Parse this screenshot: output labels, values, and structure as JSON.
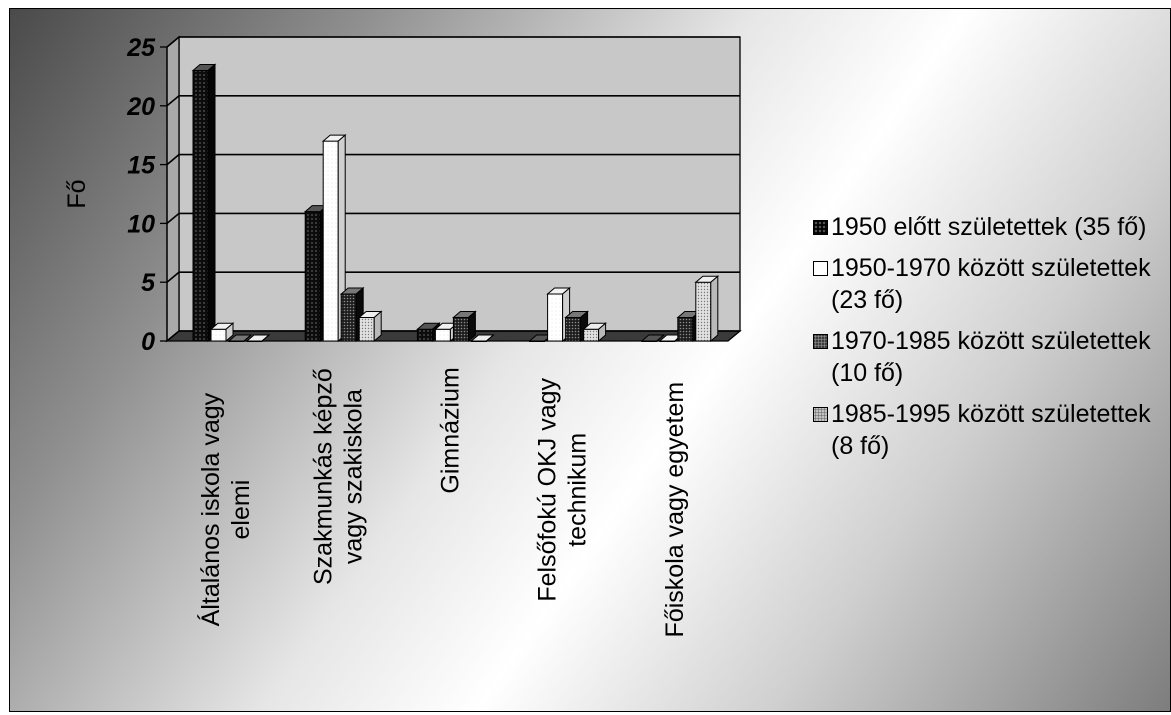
{
  "chart_data": {
    "type": "bar",
    "title": "",
    "xlabel": "",
    "ylabel": "Fő",
    "ylim": [
      0,
      25
    ],
    "yticks": [
      "0",
      "5",
      "10",
      "15",
      "20",
      "25"
    ],
    "grid": true,
    "legend_position": "right",
    "categories": [
      [
        "Általános iskola vagy",
        "elemi"
      ],
      [
        "Szakmunkás képző",
        "vagy szakiskola"
      ],
      [
        "Gimnázium"
      ],
      [
        "Felsőfokú OKJ vagy",
        "technikum"
      ],
      [
        "Főiskola vagy egyetem"
      ]
    ],
    "series": [
      {
        "name": "1950 előtt születettek (35 fő)",
        "values": [
          23,
          11,
          1,
          0,
          0
        ]
      },
      {
        "name": "1950-1970 között születettek (23 fő)",
        "values": [
          1,
          17,
          1,
          4,
          0
        ]
      },
      {
        "name": "1970-1985 között születettek (10 fő)",
        "values": [
          0,
          4,
          2,
          2,
          2
        ]
      },
      {
        "name": "1985-1995 között születettek (8 fő)",
        "values": [
          0,
          2,
          0,
          1,
          5
        ]
      }
    ],
    "colors": [
      "#111111",
      "#ffffff",
      "#2a2a2a",
      "#d8d8d8"
    ]
  }
}
